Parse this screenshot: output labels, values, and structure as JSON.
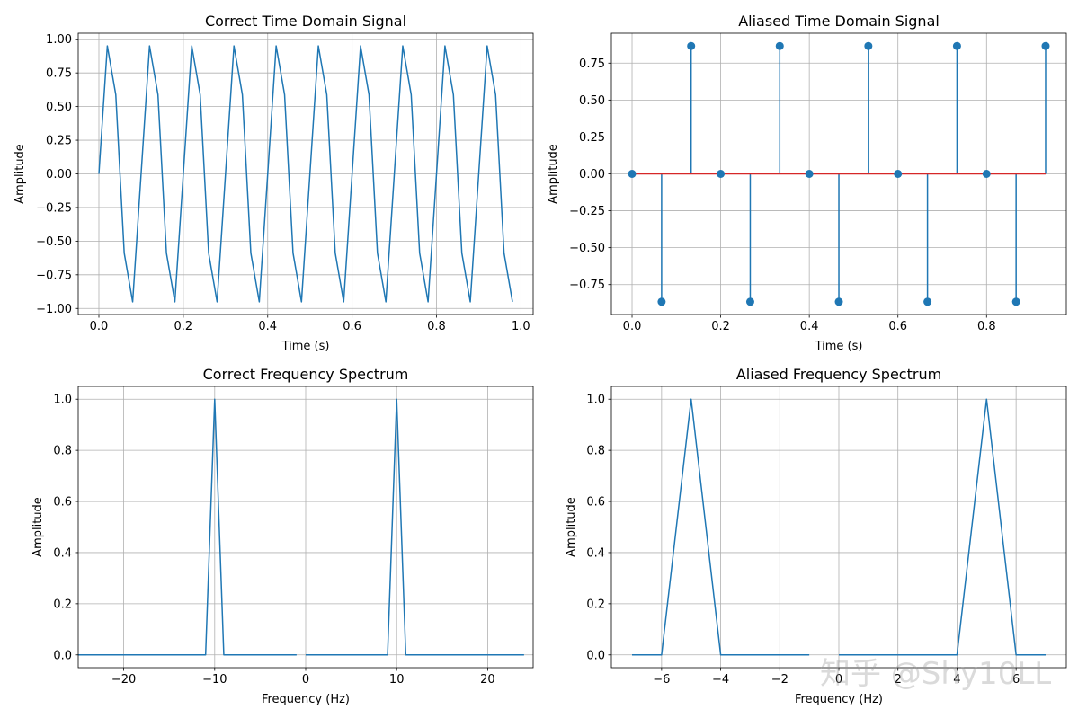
{
  "watermark": "知乎 @Shy10LL",
  "chart_data": [
    {
      "type": "line",
      "title": "Correct Time Domain Signal",
      "xlabel": "Time (s)",
      "ylabel": "Amplitude",
      "xlim": [
        -0.049,
        1.029
      ],
      "ylim": [
        -1.045,
        1.045
      ],
      "xticks": [
        0.0,
        0.2,
        0.4,
        0.6,
        0.8,
        1.0
      ],
      "xtick_labels": [
        "0.0",
        "0.2",
        "0.4",
        "0.6",
        "0.8",
        "1.0"
      ],
      "yticks": [
        -1.0,
        -0.75,
        -0.5,
        -0.25,
        0.0,
        0.25,
        0.5,
        0.75,
        1.0
      ],
      "ytick_labels": [
        "−1.00",
        "−0.75",
        "−0.50",
        "−0.25",
        "0.00",
        "0.25",
        "0.50",
        "0.75",
        "1.00"
      ],
      "grid": true,
      "color": "#1f77b4",
      "series": [
        {
          "x": [
            0,
            0.02,
            0.04,
            0.06,
            0.08,
            0.1,
            0.12,
            0.14,
            0.16,
            0.18,
            0.2,
            0.22,
            0.24,
            0.26,
            0.28,
            0.3,
            0.32,
            0.34,
            0.36,
            0.38,
            0.4,
            0.42,
            0.44,
            0.46,
            0.48,
            0.5,
            0.52,
            0.54,
            0.56,
            0.58,
            0.6,
            0.62,
            0.64,
            0.66,
            0.68,
            0.7,
            0.72,
            0.74,
            0.76,
            0.78,
            0.8,
            0.82,
            0.84,
            0.86,
            0.88,
            0.9,
            0.92,
            0.94,
            0.96,
            0.98
          ],
          "y": [
            0,
            0.951,
            0.588,
            -0.588,
            -0.951,
            0,
            0.951,
            0.588,
            -0.588,
            -0.951,
            0,
            0.951,
            0.588,
            -0.588,
            -0.951,
            0,
            0.951,
            0.588,
            -0.588,
            -0.951,
            0,
            0.951,
            0.588,
            -0.588,
            -0.951,
            0,
            0.951,
            0.588,
            -0.588,
            -0.951,
            0,
            0.951,
            0.588,
            -0.588,
            -0.951,
            0,
            0.951,
            0.588,
            -0.588,
            -0.951,
            0,
            0.951,
            0.588,
            -0.588,
            -0.951,
            0,
            0.951,
            0.588,
            -0.588,
            -0.951
          ]
        }
      ]
    },
    {
      "type": "stem",
      "title": "Aliased Time Domain Signal",
      "xlabel": "Time (s)",
      "ylabel": "Amplitude",
      "xlim": [
        -0.0467,
        0.98
      ],
      "ylim": [
        -0.9526,
        0.9526
      ],
      "xticks": [
        0.0,
        0.2,
        0.4,
        0.6,
        0.8
      ],
      "xtick_labels": [
        "0.0",
        "0.2",
        "0.4",
        "0.6",
        "0.8"
      ],
      "yticks": [
        -0.75,
        -0.5,
        -0.25,
        0.0,
        0.25,
        0.5,
        0.75
      ],
      "ytick_labels": [
        "−0.75",
        "−0.50",
        "−0.25",
        "0.00",
        "0.25",
        "0.50",
        "0.75"
      ],
      "grid": true,
      "color": "#1f77b4",
      "baseline_color": "#d62728",
      "series": [
        {
          "x": [
            0,
            0.0667,
            0.1333,
            0.2,
            0.2667,
            0.3333,
            0.4,
            0.4667,
            0.5333,
            0.6,
            0.6667,
            0.7333,
            0.8,
            0.8667,
            0.9333
          ],
          "y": [
            0,
            -0.866,
            0.866,
            0,
            -0.866,
            0.866,
            0,
            -0.866,
            0.866,
            0,
            -0.866,
            0.866,
            0,
            -0.866,
            0.866
          ]
        }
      ]
    },
    {
      "type": "line",
      "title": "Correct Frequency Spectrum",
      "xlabel": "Frequency (Hz)",
      "ylabel": "Amplitude",
      "xlim": [
        -25,
        25
      ],
      "ylim": [
        -0.05,
        1.05
      ],
      "xticks": [
        -20,
        -10,
        0,
        10,
        20
      ],
      "xtick_labels": [
        "−20",
        "−10",
        "0",
        "10",
        "20"
      ],
      "yticks": [
        0.0,
        0.2,
        0.4,
        0.6,
        0.8,
        1.0
      ],
      "ytick_labels": [
        "0.0",
        "0.2",
        "0.4",
        "0.6",
        "0.8",
        "1.0"
      ],
      "grid": true,
      "color": "#1f77b4",
      "series": [
        {
          "x": [
            0,
            9,
            10,
            11,
            24
          ],
          "y": [
            0,
            0,
            1,
            0,
            0
          ]
        },
        {
          "x": [
            -25,
            -11,
            -10,
            -9,
            -1
          ],
          "y": [
            0,
            0,
            1,
            0,
            0
          ]
        }
      ]
    },
    {
      "type": "line",
      "title": "Aliased Frequency Spectrum",
      "xlabel": "Frequency (Hz)",
      "ylabel": "Amplitude",
      "xlim": [
        -7.7,
        7.7
      ],
      "ylim": [
        -0.05,
        1.05
      ],
      "xticks": [
        -6,
        -4,
        -2,
        0,
        2,
        4,
        6
      ],
      "xtick_labels": [
        "−6",
        "−4",
        "−2",
        "0",
        "2",
        "4",
        "6"
      ],
      "yticks": [
        0.0,
        0.2,
        0.4,
        0.6,
        0.8,
        1.0
      ],
      "ytick_labels": [
        "0.0",
        "0.2",
        "0.4",
        "0.6",
        "0.8",
        "1.0"
      ],
      "grid": true,
      "color": "#1f77b4",
      "series": [
        {
          "x": [
            0,
            1,
            2,
            3,
            4,
            5,
            6,
            7
          ],
          "y": [
            0,
            0,
            0,
            0,
            0,
            1,
            0,
            0
          ]
        },
        {
          "x": [
            -7,
            -6,
            -5,
            -4,
            -3,
            -2,
            -1
          ],
          "y": [
            0,
            0,
            1,
            0,
            0,
            0,
            0
          ]
        }
      ]
    }
  ]
}
